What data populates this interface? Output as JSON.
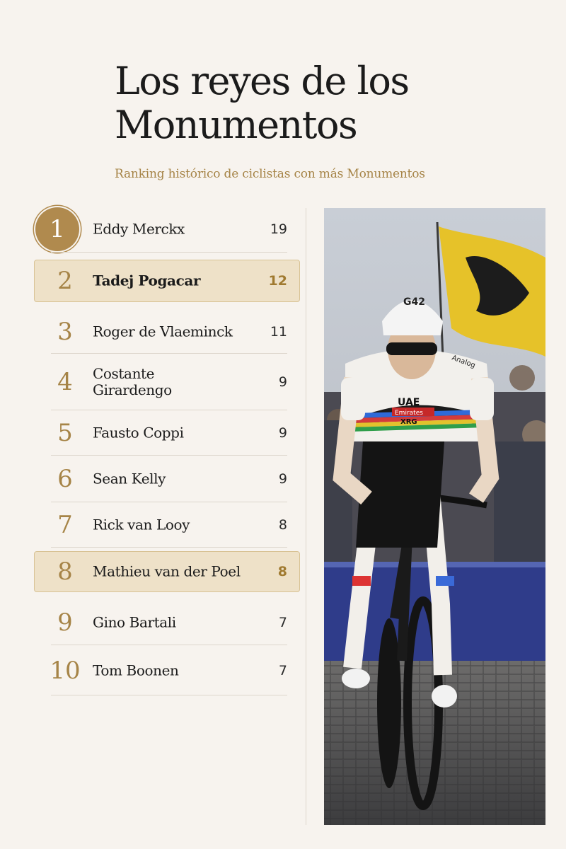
{
  "header": {
    "title_line1": "Los reyes de los",
    "title_line2": "Monumentos",
    "subtitle": "Ranking histórico de ciclistas con más Monumentos"
  },
  "colors": {
    "background": "#f7f3ee",
    "gold_accent": "#a68447",
    "highlight_fill": "#eee1c8"
  },
  "ranking": [
    {
      "rank": "1",
      "name": "Eddy Merckx",
      "wins": "19"
    },
    {
      "rank": "2",
      "name": "Tadej Pogacar",
      "wins": "12",
      "highlight": true
    },
    {
      "rank": "3",
      "name": "Roger de Vlaeminck",
      "wins": "11"
    },
    {
      "rank": "4",
      "name": "Costante Girardengo",
      "wins": "9"
    },
    {
      "rank": "5",
      "name": "Fausto Coppi",
      "wins": "9"
    },
    {
      "rank": "6",
      "name": "Sean Kelly",
      "wins": "9"
    },
    {
      "rank": "7",
      "name": "Rick van Looy",
      "wins": "8"
    },
    {
      "rank": "8",
      "name": "Mathieu van der Poel",
      "wins": "8",
      "highlight": true
    },
    {
      "rank": "9",
      "name": "Gino Bartali",
      "wins": "7"
    },
    {
      "rank": "10",
      "name": "Tom Boonen",
      "wins": "7"
    }
  ],
  "photo": {
    "jersey_brand": "UAE",
    "jersey_sponsor": "Emirates",
    "jersey_sponsor2": "XRG",
    "helmet_brand": "G42",
    "sleeve_brand": "Analog"
  }
}
